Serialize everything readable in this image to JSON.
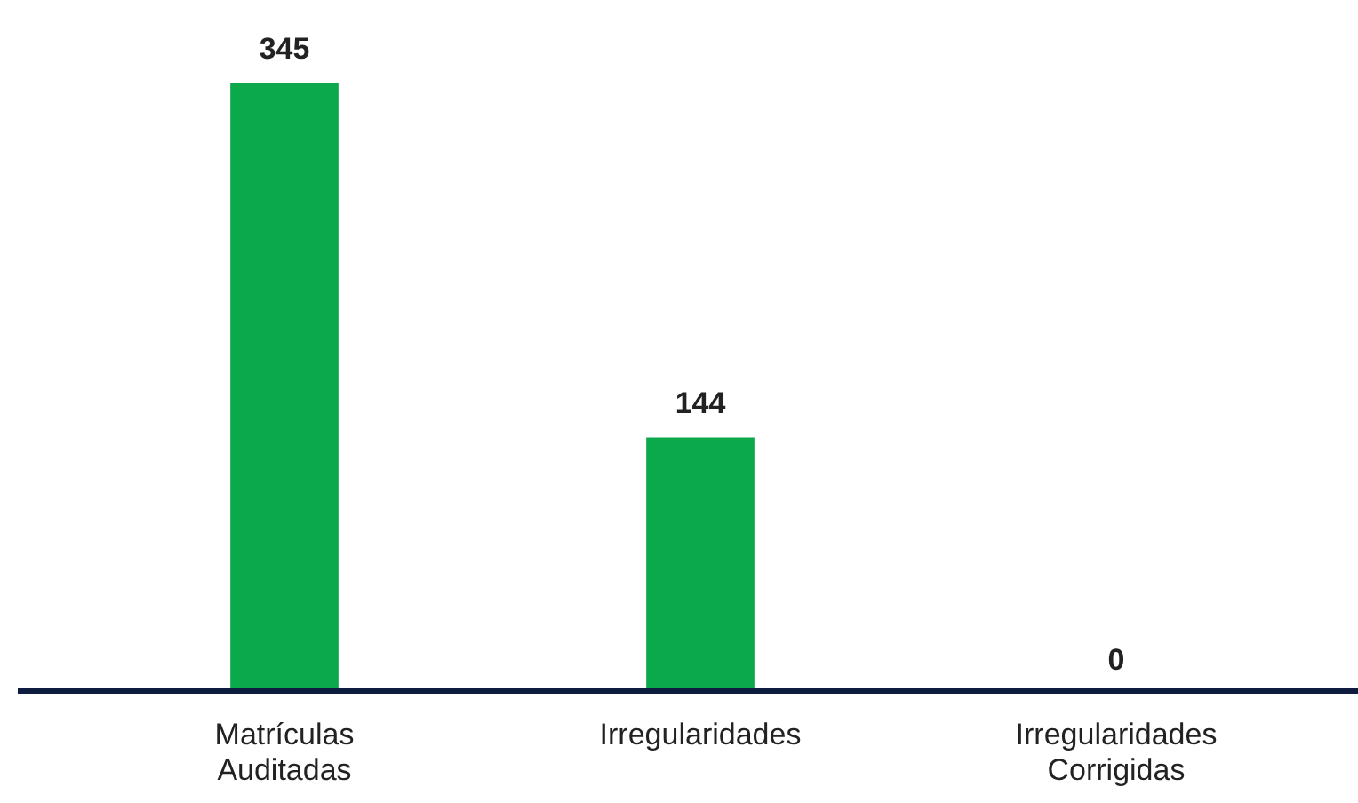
{
  "chart_data": {
    "type": "bar",
    "categories": [
      "Matrículas Auditadas",
      "Irregularidades",
      "Irregularidades Corrigidas"
    ],
    "values": [
      345,
      144,
      0
    ],
    "color": "#0ca84c",
    "data_labels": true
  }
}
